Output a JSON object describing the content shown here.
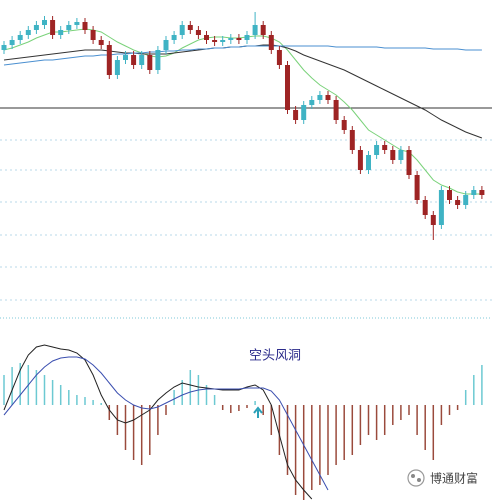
{
  "chart_data": [
    {
      "type": "candlestick",
      "ylim": [
        0,
        300
      ],
      "up_color": "#3fb3c4",
      "down_color": "#9e2424",
      "hline": 192,
      "open": [
        250,
        255,
        260,
        265,
        270,
        275,
        280,
        265,
        270,
        275,
        278,
        270,
        260,
        255,
        225,
        240,
        245,
        235,
        245,
        230,
        250,
        260,
        265,
        275,
        270,
        265,
        260,
        258,
        260,
        262,
        260,
        265,
        275,
        265,
        250,
        235,
        190,
        180,
        195,
        200,
        205,
        200,
        180,
        170,
        150,
        130,
        145,
        155,
        150,
        140,
        150,
        125,
        100,
        85,
        75,
        110,
        100,
        95,
        105,
        110
      ],
      "high": [
        259,
        264,
        269,
        274,
        279,
        284,
        284,
        274,
        279,
        282,
        282,
        274,
        264,
        259,
        244,
        249,
        249,
        249,
        249,
        254,
        264,
        269,
        279,
        279,
        274,
        269,
        264,
        264,
        266,
        266,
        269,
        288,
        279,
        269,
        254,
        239,
        194,
        199,
        204,
        209,
        209,
        204,
        184,
        174,
        154,
        149,
        159,
        159,
        154,
        154,
        154,
        129,
        104,
        89,
        114,
        114,
        104,
        109,
        114,
        114
      ],
      "low": [
        246,
        251,
        256,
        261,
        266,
        271,
        261,
        261,
        266,
        271,
        266,
        256,
        251,
        221,
        221,
        236,
        231,
        231,
        226,
        226,
        246,
        256,
        261,
        266,
        261,
        256,
        254,
        254,
        256,
        256,
        256,
        261,
        261,
        246,
        231,
        186,
        176,
        176,
        191,
        196,
        196,
        176,
        166,
        146,
        126,
        126,
        141,
        146,
        136,
        136,
        121,
        96,
        81,
        60,
        71,
        96,
        91,
        91,
        101,
        101
      ],
      "close": [
        255,
        260,
        265,
        270,
        275,
        280,
        265,
        270,
        275,
        278,
        270,
        260,
        255,
        225,
        240,
        245,
        235,
        245,
        230,
        250,
        260,
        265,
        275,
        270,
        265,
        260,
        258,
        260,
        262,
        260,
        265,
        275,
        265,
        250,
        235,
        190,
        180,
        195,
        200,
        205,
        200,
        180,
        170,
        150,
        130,
        145,
        155,
        150,
        140,
        150,
        125,
        100,
        85,
        75,
        110,
        100,
        95,
        105,
        110,
        105
      ],
      "lines": [
        {
          "color": "#7ad27a",
          "values": [
            250,
            252,
            255,
            258,
            262,
            265,
            268,
            268,
            269,
            270,
            271,
            270,
            268,
            263,
            258,
            254,
            250,
            247,
            244,
            243,
            244,
            247,
            252,
            256,
            260,
            262,
            263,
            263,
            262,
            262,
            263,
            264,
            264,
            262,
            258,
            250,
            240,
            230,
            222,
            215,
            210,
            205,
            198,
            190,
            180,
            170,
            165,
            160,
            155,
            150,
            148,
            140,
            130,
            120,
            115,
            112,
            108,
            106,
            106,
            106
          ]
        },
        {
          "color": "#333333",
          "values": [
            240,
            241,
            242,
            243,
            244,
            245,
            246,
            247,
            248,
            249,
            250,
            250,
            250,
            249,
            248,
            247,
            247,
            246,
            246,
            246,
            246,
            247,
            248,
            249,
            250,
            251,
            252,
            252,
            253,
            253,
            254,
            254,
            255,
            255,
            254,
            252,
            249,
            245,
            242,
            239,
            236,
            233,
            230,
            226,
            222,
            218,
            214,
            210,
            206,
            202,
            198,
            194,
            190,
            185,
            180,
            176,
            172,
            168,
            165,
            162
          ]
        },
        {
          "color": "#4a8fd0",
          "values": [
            235,
            236,
            237,
            238,
            239,
            240,
            240,
            241,
            242,
            243,
            244,
            244,
            245,
            245,
            246,
            246,
            247,
            247,
            248,
            248,
            249,
            249,
            250,
            250,
            251,
            251,
            252,
            252,
            253,
            253,
            254,
            254,
            254,
            254,
            254,
            254,
            254,
            254,
            254,
            254,
            254,
            253,
            253,
            253,
            253,
            253,
            253,
            252,
            252,
            252,
            252,
            252,
            252,
            251,
            251,
            251,
            251,
            250,
            250,
            250
          ]
        }
      ]
    },
    {
      "type": "macd",
      "ylim": [
        -96,
        85
      ],
      "pos_color": "#6cc9d2",
      "neg_color": "#9a4a3c",
      "annotation": "空头风洞",
      "values": [
        30,
        38,
        42,
        40,
        35,
        30,
        25,
        20,
        15,
        10,
        8,
        5,
        2,
        -15,
        -30,
        -45,
        -55,
        -60,
        -50,
        -30,
        -10,
        15,
        25,
        35,
        30,
        20,
        10,
        -5,
        -8,
        -6,
        -3,
        4,
        -10,
        -30,
        -50,
        -70,
        -90,
        -95,
        -85,
        -80,
        -70,
        -60,
        -55,
        -50,
        -40,
        -30,
        -35,
        -30,
        -20,
        -15,
        -10,
        -30,
        -45,
        -55,
        -20,
        -10,
        -5,
        15,
        30,
        40
      ],
      "lines": [
        {
          "color": "#222222",
          "values": [
            -5,
            15,
            35,
            50,
            58,
            60,
            58,
            56,
            55,
            52,
            45,
            30,
            10,
            -5,
            -15,
            -18,
            -15,
            -10,
            -5,
            5,
            12,
            18,
            22,
            20,
            18,
            17,
            16,
            15,
            15,
            15,
            18,
            20,
            15,
            0,
            -30,
            -60,
            -75,
            -85,
            -94,
            null,
            null,
            null,
            null,
            null,
            null,
            null,
            null,
            null,
            null,
            null,
            null,
            null,
            null,
            null,
            null,
            null,
            null,
            null,
            null,
            null
          ]
        },
        {
          "color": "#3b4fb0",
          "values": [
            -10,
            0,
            10,
            20,
            30,
            38,
            44,
            47,
            48,
            48,
            46,
            40,
            32,
            22,
            12,
            5,
            0,
            -3,
            -4,
            -2,
            2,
            6,
            10,
            13,
            15,
            16,
            16,
            16,
            16,
            16,
            17,
            17,
            17,
            14,
            5,
            -10,
            -25,
            -40,
            -55,
            -70,
            -85,
            null,
            null,
            null,
            null,
            null,
            null,
            null,
            null,
            null,
            null,
            null,
            null,
            null,
            null,
            null,
            null,
            null,
            null,
            null
          ]
        }
      ]
    }
  ],
  "watermark": "博通财富"
}
